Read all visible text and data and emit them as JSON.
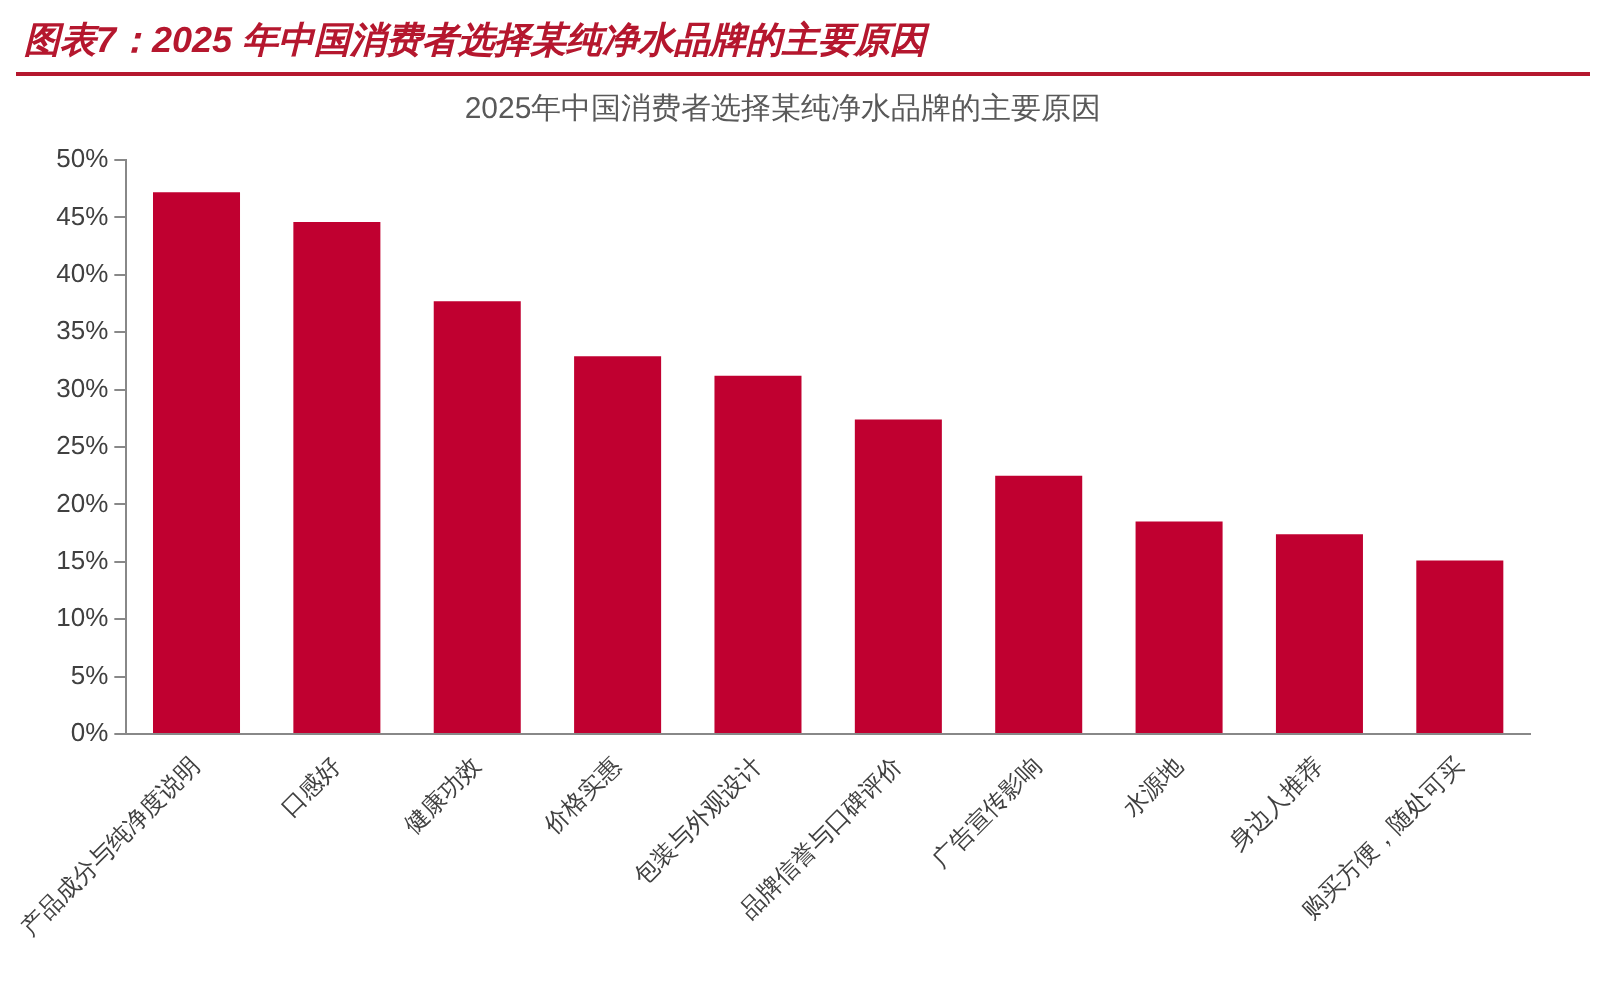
{
  "chart_data": {
    "type": "bar",
    "title": "图表7：2025 年中国消费者选择某纯净水品牌的主要原因",
    "subtitle": "2025年中国消费者选择某纯净水品牌的主要原因",
    "categories": [
      "产品成分与纯净度说明",
      "口感好",
      "健康功效",
      "价格实惠",
      "包装与外观设计",
      "品牌信誉与口碑评价",
      "广告宣传影响",
      "水源地",
      "身边人推荐",
      "购买方便，随处可买"
    ],
    "values": [
      47.2,
      44.6,
      37.7,
      32.9,
      31.2,
      27.4,
      22.5,
      18.5,
      17.4,
      15.1
    ],
    "color": "#c00030",
    "ylim": [
      0,
      50
    ],
    "yticks": [
      {
        "value": 0,
        "label": "0%"
      },
      {
        "value": 5,
        "label": "5%"
      },
      {
        "value": 10,
        "label": "10%"
      },
      {
        "value": 15,
        "label": "15%"
      },
      {
        "value": 20,
        "label": "20%"
      },
      {
        "value": 25,
        "label": "25%"
      },
      {
        "value": 30,
        "label": "30%"
      },
      {
        "value": 35,
        "label": "35%"
      },
      {
        "value": 40,
        "label": "40%"
      },
      {
        "value": 45,
        "label": "45%"
      },
      {
        "value": 50,
        "label": "50%"
      }
    ],
    "grid": false,
    "legend": false
  }
}
